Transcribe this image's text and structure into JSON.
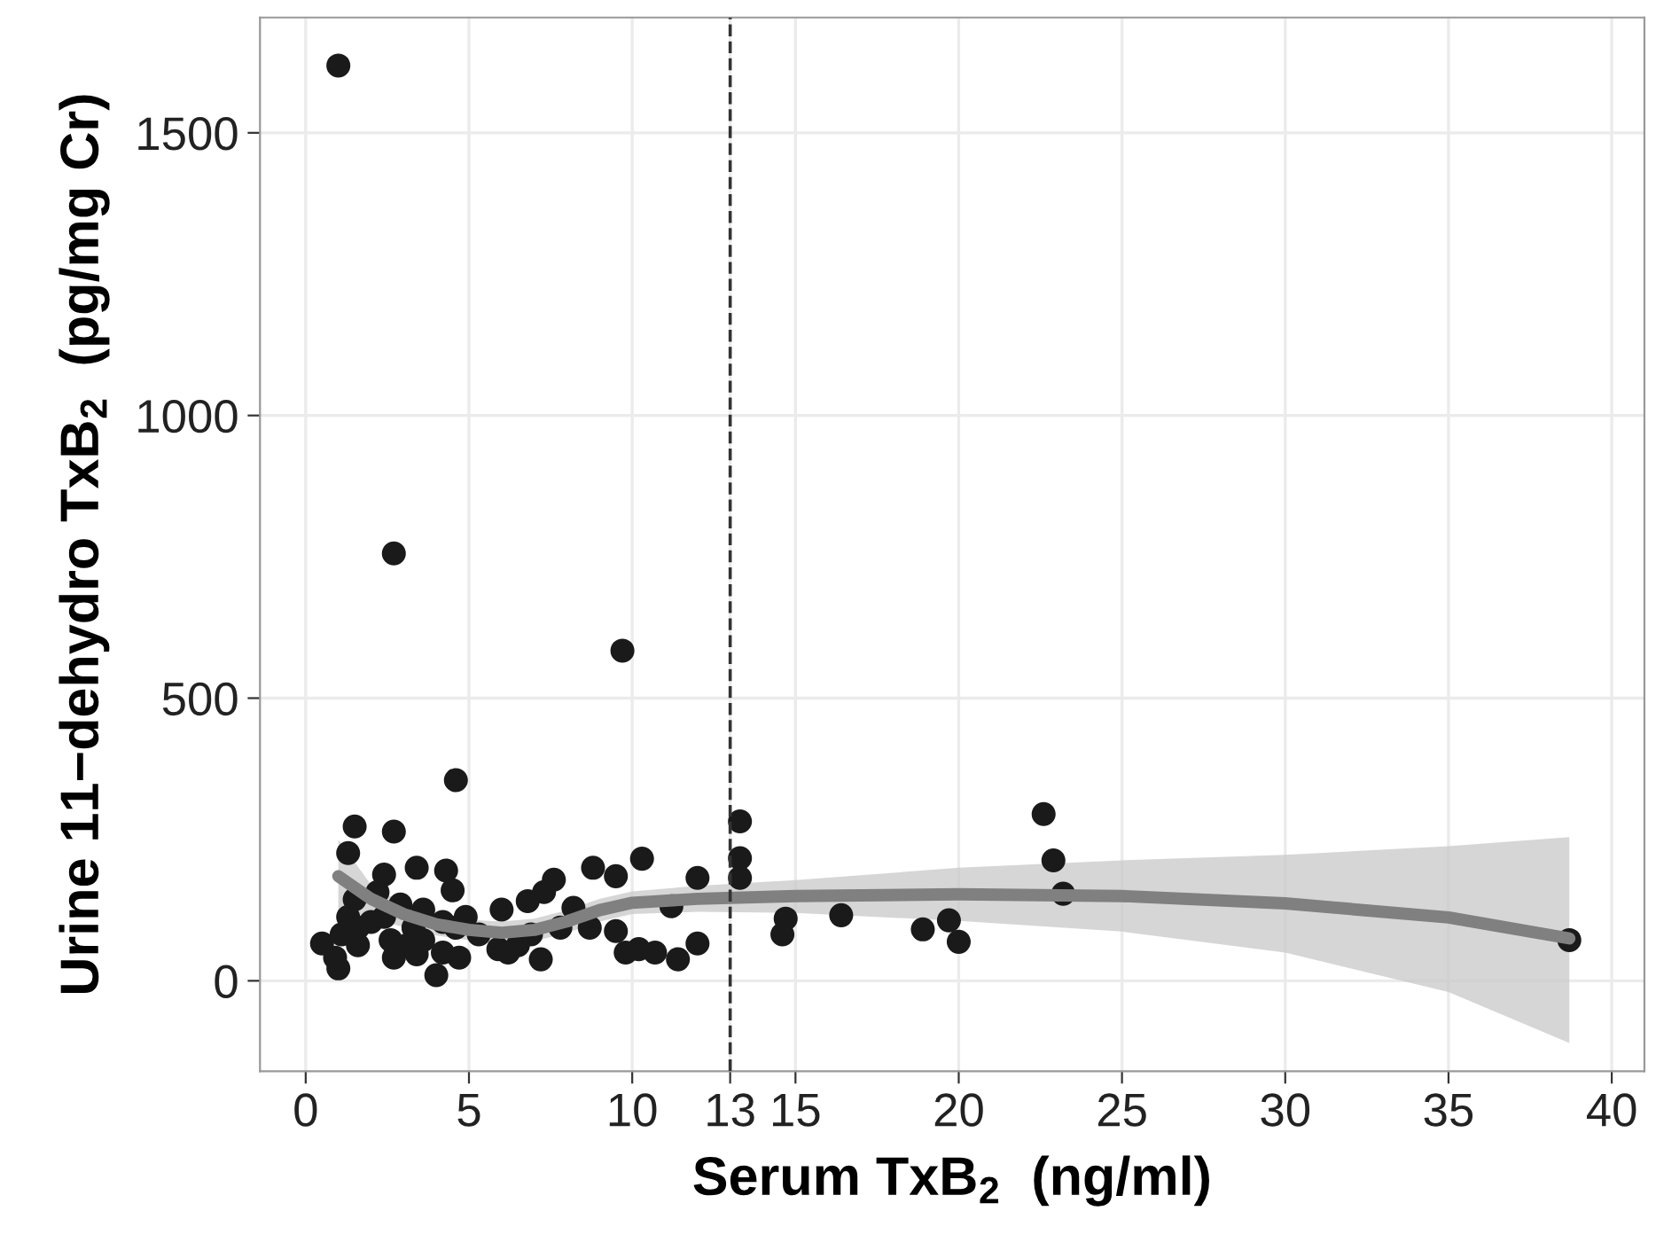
{
  "chart_data": {
    "type": "scatter",
    "xlabel": "Serum TxB$_{2}$  (ng/ml)",
    "ylabel": "Urine 11−dehydro TxB$_{2}$  (pg/mg Cr)",
    "xlim": [
      -1.4,
      41
    ],
    "ylim": [
      -160,
      1704
    ],
    "xticks": [
      0,
      5,
      10,
      13,
      15,
      20,
      25,
      30,
      35,
      40
    ],
    "yticks": [
      0,
      500,
      1000,
      1500
    ],
    "grid": true,
    "ref_lines": [
      {
        "axis": "x",
        "value": 13,
        "color": "#333333",
        "line_style": "dashed"
      }
    ],
    "series": [
      {
        "color": "#1a1a1a",
        "marker": "circle",
        "x": [
          1.0,
          2.7,
          9.7,
          4.6,
          13.3,
          13.3,
          13.3,
          14.7,
          14.6,
          16.4,
          18.9,
          19.7,
          20.0,
          22.6,
          22.9,
          23.2,
          38.7,
          1.5,
          1.3,
          2.7,
          3.4,
          2.4,
          4.3,
          4.5,
          8.8,
          9.5,
          10.3,
          12.0,
          11.2,
          12.0,
          11.4,
          10.7,
          10.2,
          9.8,
          9.5,
          8.7,
          7.6,
          7.3,
          6.8,
          8.2,
          7.8,
          7.2,
          6.0,
          5.9,
          6.2,
          4.0,
          1.0,
          0.5,
          1.1,
          1.6,
          2.0,
          2.6,
          3.1,
          3.6,
          4.2,
          4.7,
          4.9,
          3.6,
          2.9,
          2.2,
          1.5,
          1.3,
          1.6,
          2.4,
          3.3,
          4.2,
          4.6,
          5.3,
          6.9,
          6.5,
          0.9,
          2.7,
          3.4
        ],
        "values": [
          1619,
          756,
          584,
          355,
          282,
          217,
          182,
          110,
          82,
          116,
          91,
          107,
          69,
          295,
          213,
          154,
          72,
          273,
          226,
          264,
          200,
          188,
          195,
          160,
          200,
          185,
          216,
          182,
          132,
          66,
          38,
          50,
          56,
          50,
          88,
          94,
          179,
          157,
          141,
          129,
          94,
          38,
          126,
          56,
          50,
          10,
          22,
          66,
          82,
          63,
          104,
          72,
          63,
          72,
          50,
          41,
          113,
          126,
          135,
          157,
          144,
          113,
          94,
          113,
          94,
          104,
          94,
          82,
          82,
          63,
          41,
          41,
          47
        ]
      },
      {
        "type": "line",
        "color": "#808080",
        "x": [
          1,
          2,
          3,
          4,
          5,
          6,
          7,
          8,
          9,
          10,
          12,
          15,
          20,
          25,
          30,
          35,
          38.7
        ],
        "values": [
          185,
          145,
          118,
          100,
          90,
          85,
          90,
          105,
          125,
          138,
          145,
          150,
          153,
          150,
          137,
          112,
          75
        ],
        "lower": [
          110,
          110,
          95,
          80,
          72,
          65,
          70,
          85,
          105,
          118,
          122,
          120,
          106,
          87,
          50,
          -20,
          -110
        ],
        "upper": [
          250,
          170,
          135,
          118,
          108,
          105,
          110,
          125,
          145,
          158,
          168,
          178,
          200,
          213,
          223,
          238,
          254
        ]
      }
    ]
  }
}
